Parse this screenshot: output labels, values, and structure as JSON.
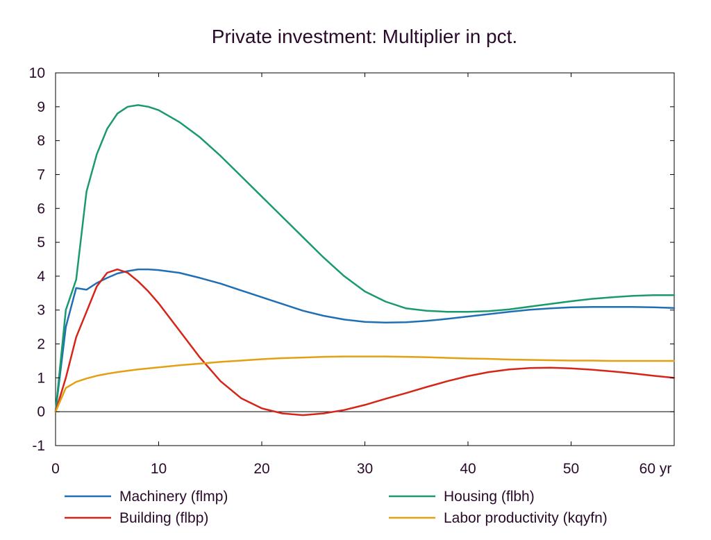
{
  "chart_data": {
    "type": "line",
    "title": "Private investment: Multiplier in pct.",
    "xlabel": "",
    "ylabel": "",
    "xlim": [
      0,
      60
    ],
    "ylim": [
      -1,
      10
    ],
    "x_ticks": [
      0,
      10,
      20,
      30,
      40,
      50,
      60
    ],
    "x_tick_labels": [
      "0",
      "10",
      "20",
      "30",
      "40",
      "50",
      "60 yr"
    ],
    "y_ticks": [
      -1,
      0,
      1,
      2,
      3,
      4,
      5,
      6,
      7,
      8,
      9,
      10
    ],
    "y_tick_labels": [
      "-1",
      "0",
      "1",
      "2",
      "3",
      "4",
      "5",
      "6",
      "7",
      "8",
      "9",
      "10"
    ],
    "grid": false,
    "zero_line": true,
    "legend_position": "bottom",
    "series": [
      {
        "name": "Machinery (flmp)",
        "color": "#1f6fb4",
        "x": [
          0,
          1,
          2,
          3,
          4,
          5,
          6,
          7,
          8,
          9,
          10,
          12,
          14,
          16,
          18,
          20,
          22,
          24,
          26,
          28,
          30,
          32,
          34,
          36,
          38,
          40,
          42,
          44,
          46,
          48,
          50,
          52,
          54,
          56,
          58,
          60
        ],
        "y": [
          0,
          2.5,
          3.65,
          3.6,
          3.8,
          3.95,
          4.08,
          4.15,
          4.2,
          4.2,
          4.18,
          4.1,
          3.95,
          3.78,
          3.58,
          3.38,
          3.18,
          2.98,
          2.83,
          2.72,
          2.65,
          2.63,
          2.64,
          2.68,
          2.74,
          2.81,
          2.88,
          2.95,
          3.01,
          3.05,
          3.08,
          3.09,
          3.09,
          3.09,
          3.08,
          3.06
        ]
      },
      {
        "name": "Housing (flbh)",
        "color": "#1a9a6c",
        "x": [
          0,
          1,
          2,
          3,
          4,
          5,
          6,
          7,
          8,
          9,
          10,
          12,
          14,
          16,
          18,
          20,
          22,
          24,
          26,
          28,
          30,
          32,
          34,
          36,
          38,
          40,
          42,
          44,
          46,
          48,
          50,
          52,
          54,
          56,
          58,
          60
        ],
        "y": [
          0,
          3.0,
          3.9,
          6.5,
          7.6,
          8.35,
          8.8,
          9.0,
          9.05,
          9.0,
          8.9,
          8.55,
          8.1,
          7.55,
          6.95,
          6.35,
          5.75,
          5.15,
          4.55,
          4.0,
          3.55,
          3.25,
          3.05,
          2.98,
          2.95,
          2.95,
          2.97,
          3.02,
          3.1,
          3.18,
          3.26,
          3.33,
          3.38,
          3.42,
          3.44,
          3.44
        ]
      },
      {
        "name": "Building (flbp)",
        "color": "#d62518",
        "x": [
          0,
          1,
          2,
          3,
          4,
          5,
          6,
          7,
          8,
          9,
          10,
          12,
          14,
          16,
          18,
          20,
          22,
          24,
          26,
          28,
          30,
          32,
          34,
          36,
          38,
          40,
          42,
          44,
          46,
          48,
          50,
          52,
          54,
          56,
          58,
          60
        ],
        "y": [
          0,
          1.0,
          2.2,
          2.95,
          3.7,
          4.1,
          4.2,
          4.1,
          3.85,
          3.55,
          3.2,
          2.4,
          1.6,
          0.9,
          0.4,
          0.1,
          -0.05,
          -0.1,
          -0.05,
          0.05,
          0.2,
          0.38,
          0.55,
          0.73,
          0.9,
          1.05,
          1.17,
          1.25,
          1.29,
          1.3,
          1.28,
          1.24,
          1.19,
          1.13,
          1.06,
          1.0
        ]
      },
      {
        "name": "Labor productivity (kqyfn)",
        "color": "#e3a012",
        "x": [
          0,
          1,
          2,
          3,
          4,
          5,
          6,
          7,
          8,
          9,
          10,
          12,
          14,
          16,
          18,
          20,
          22,
          24,
          26,
          28,
          30,
          32,
          34,
          36,
          38,
          40,
          42,
          44,
          46,
          48,
          50,
          52,
          54,
          56,
          58,
          60
        ],
        "y": [
          0,
          0.7,
          0.88,
          0.98,
          1.06,
          1.12,
          1.17,
          1.21,
          1.25,
          1.28,
          1.31,
          1.37,
          1.42,
          1.47,
          1.51,
          1.55,
          1.58,
          1.6,
          1.62,
          1.63,
          1.63,
          1.63,
          1.62,
          1.61,
          1.59,
          1.57,
          1.56,
          1.54,
          1.53,
          1.52,
          1.51,
          1.51,
          1.5,
          1.5,
          1.5,
          1.5
        ]
      }
    ]
  }
}
